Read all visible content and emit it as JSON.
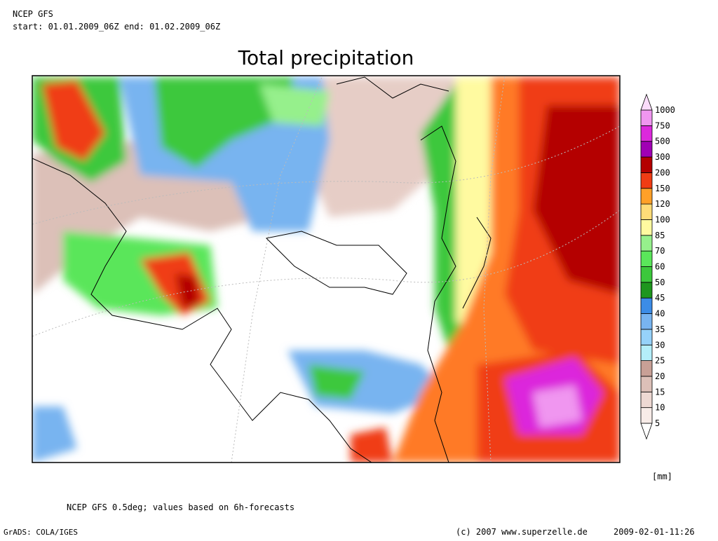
{
  "header": {
    "model": "NCEP GFS",
    "period": "start: 01.01.2009_06Z end: 01.02.2009_06Z"
  },
  "title": "Total precipitation",
  "legend": {
    "levels": [
      5,
      10,
      15,
      20,
      25,
      30,
      35,
      40,
      45,
      50,
      60,
      70,
      85,
      100,
      120,
      150,
      200,
      300,
      500,
      750,
      1000
    ],
    "colors": [
      "#ffffff",
      "#f8ece8",
      "#eed9d3",
      "#dcc0b8",
      "#c8a096",
      "#b4eefa",
      "#96d2fa",
      "#78b4f0",
      "#3c8ce6",
      "#1e961e",
      "#3cc83c",
      "#5ae65a",
      "#96f08c",
      "#fffaa0",
      "#ffdc78",
      "#ffa028",
      "#f03c14",
      "#b40000",
      "#a000b4",
      "#dc28dc",
      "#f096f0",
      "#fadcfa"
    ],
    "unit": "[mm]"
  },
  "footer": {
    "note": "NCEP GFS 0.5deg; values based on 6h-forecasts",
    "software": "GrADS: COLA/IGES",
    "copyright": "(c) 2007 www.superzelle.de",
    "timestamp": "2009-02-01-11:26"
  }
}
